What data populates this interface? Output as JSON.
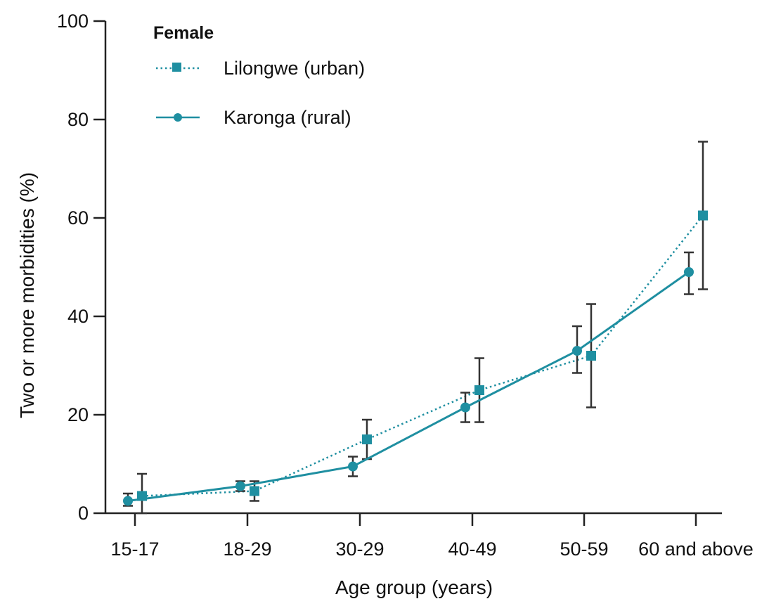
{
  "chart_data": {
    "type": "line",
    "categories": [
      "15-17",
      "18-29",
      "30-29",
      "40-49",
      "50-59",
      "60 and above"
    ],
    "xlabel": "Age group (years)",
    "ylabel": "Two or more morbidities (%)",
    "ylim": [
      0,
      100
    ],
    "yticks": [
      0,
      20,
      40,
      60,
      80,
      100
    ],
    "grid": false,
    "legend": {
      "title": "Female",
      "placement": "top-left"
    },
    "series": [
      {
        "name": "Lilongwe (urban)",
        "style": "dotted",
        "marker": "square",
        "color": "#1f8fa1",
        "values": [
          3.5,
          4.5,
          15,
          25,
          32,
          60.5
        ],
        "error_low": [
          0,
          2.5,
          11,
          18.5,
          21.5,
          45.5
        ],
        "error_high": [
          8,
          6.5,
          19,
          31.5,
          42.5,
          75.5
        ]
      },
      {
        "name": "Karonga (rural)",
        "style": "solid",
        "marker": "circle",
        "color": "#1f8fa1",
        "values": [
          2.5,
          5.5,
          9.5,
          21.5,
          33,
          49
        ],
        "error_low": [
          1.5,
          4.5,
          7.5,
          18.5,
          28.5,
          44.5
        ],
        "error_high": [
          4,
          6.5,
          11.5,
          24.5,
          38,
          53
        ]
      }
    ]
  }
}
